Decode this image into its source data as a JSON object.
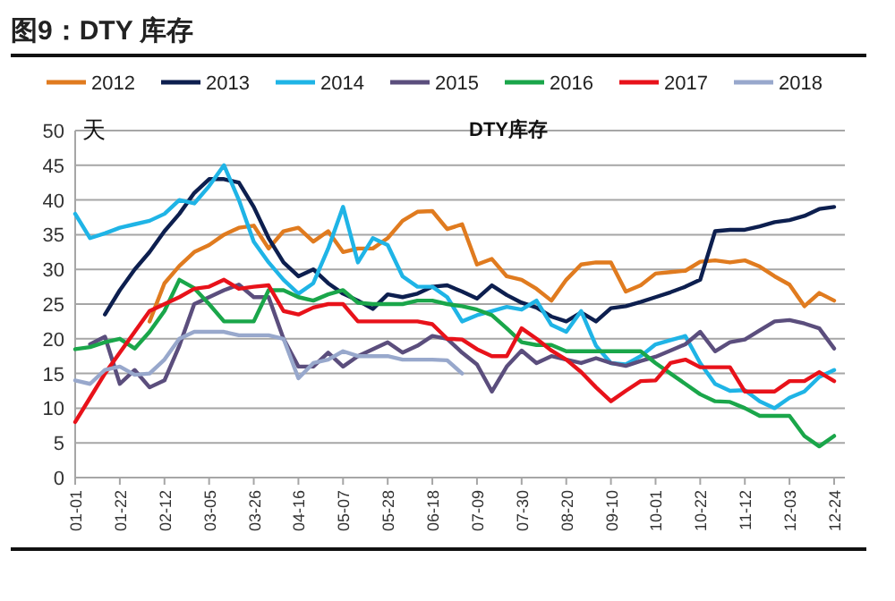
{
  "chart_data": {
    "type": "line",
    "title": "图9：DTY 库存",
    "subtitle": "DTY库存",
    "ylabel": "天",
    "categories": [
      "01-01",
      null,
      null,
      "01-22",
      null,
      null,
      "02-12",
      null,
      null,
      "03-05",
      null,
      null,
      "03-26",
      null,
      null,
      "04-16",
      null,
      null,
      "05-07",
      null,
      null,
      "05-28",
      null,
      null,
      "06-18",
      null,
      null,
      "07-09",
      null,
      null,
      "07-30",
      null,
      null,
      "08-20",
      null,
      null,
      "09-10",
      null,
      null,
      "10-01",
      null,
      null,
      "10-22",
      null,
      null,
      "11-12",
      null,
      null,
      "12-03",
      null,
      null,
      "12-24"
    ],
    "series": [
      {
        "name": "2012",
        "color": "#e07b1f",
        "values": [
          null,
          null,
          null,
          null,
          null,
          22.5,
          28,
          30.5,
          32.5,
          33.5,
          35,
          36,
          36.3,
          33,
          35.5,
          36,
          34,
          35.5,
          32.5,
          33,
          33,
          34.5,
          37,
          38.3,
          38.4,
          35.8,
          36.5,
          30.7,
          31.5,
          29,
          28.5,
          27.2,
          25.5,
          28.5,
          30.7,
          31,
          31,
          26.8,
          27.7,
          29.4,
          29.6,
          29.8,
          31.1,
          31.3,
          31,
          31.3,
          30.4,
          29,
          27.8,
          24.7,
          26.6,
          25.5
        ]
      },
      {
        "name": "2013",
        "color": "#0d1f4f",
        "values": [
          null,
          null,
          23.5,
          27,
          30,
          32.5,
          35.5,
          38,
          41,
          43,
          43,
          42.5,
          39,
          34.5,
          31,
          29,
          30,
          28,
          26.5,
          25.5,
          24.3,
          26.4,
          26,
          26.5,
          27.5,
          27.7,
          26.8,
          25.8,
          27.7,
          26.3,
          25.2,
          24.5,
          23.2,
          22.5,
          23.8,
          22.5,
          24.4,
          24.7,
          25.3,
          26,
          26.7,
          27.5,
          28.5,
          35.5,
          35.7,
          35.7,
          36.2,
          36.8,
          37.1,
          37.7,
          38.7,
          39
        ]
      },
      {
        "name": "2014",
        "color": "#1fb4e6",
        "values": [
          38,
          34.5,
          35.2,
          36,
          36.5,
          37,
          38,
          40,
          39.5,
          42,
          45,
          40,
          34,
          31,
          28.5,
          26.5,
          28,
          33,
          39,
          31,
          34.5,
          33.5,
          29,
          27.5,
          27.5,
          26,
          22.5,
          23.4,
          24,
          24.6,
          24.2,
          25.5,
          22,
          21,
          24,
          19,
          16.5,
          16.3,
          17.5,
          19.2,
          19.8,
          20.4,
          16.5,
          13.5,
          12.5,
          12.6,
          11,
          10,
          11.5,
          12.4,
          14.5,
          15.5
        ]
      },
      {
        "name": "2015",
        "color": "#5b4e7d",
        "values": [
          null,
          19.2,
          20.3,
          13.5,
          15.5,
          13,
          14,
          19,
          25,
          26,
          27,
          27.8,
          26,
          26,
          20,
          16,
          16,
          18,
          16,
          17.5,
          18.5,
          19.5,
          18,
          19,
          20.4,
          20,
          18,
          16.3,
          12.4,
          16,
          18.3,
          16.5,
          17.5,
          17,
          16.5,
          17.2,
          16.5,
          16.1,
          16.8,
          17.4,
          18.3,
          19.2,
          21,
          18.2,
          19.5,
          19.9,
          21.2,
          22.5,
          22.7,
          22.2,
          21.5,
          18.6
        ]
      },
      {
        "name": "2016",
        "color": "#1aa64a",
        "values": [
          18.5,
          18.8,
          19.5,
          20,
          18.6,
          21,
          24,
          28.5,
          27.3,
          25,
          22.5,
          22.5,
          22.5,
          27,
          27,
          26,
          25.5,
          26.4,
          27,
          25.2,
          25,
          25,
          25,
          25.5,
          25.5,
          25,
          24.7,
          24.2,
          23.4,
          21.5,
          19.5,
          19.1,
          19.1,
          18.2,
          18.2,
          18.2,
          18.2,
          18.2,
          18.2,
          16.5,
          15,
          13.5,
          12,
          11,
          10.9,
          10,
          8.9,
          8.9,
          8.9,
          6,
          4.5,
          6
        ]
      },
      {
        "name": "2017",
        "color": "#e8121a",
        "values": [
          8,
          11.5,
          15,
          18,
          21,
          24,
          25,
          26,
          27.2,
          27.5,
          28.5,
          27.2,
          27.5,
          27.7,
          24,
          23.5,
          24.5,
          25,
          25,
          22.5,
          22.5,
          22.5,
          22.5,
          22.5,
          22.1,
          20,
          19.9,
          18.5,
          17.5,
          17.5,
          21.5,
          20,
          18.3,
          17,
          15.2,
          13,
          11,
          12.5,
          13.9,
          14,
          16.5,
          17,
          15.9,
          15.9,
          15.9,
          12.4,
          12.4,
          12.4,
          13.9,
          13.9,
          15.2,
          13.9
        ]
      },
      {
        "name": "2018",
        "color": "#98a8cc",
        "values": [
          14,
          13.5,
          15.5,
          16,
          14.8,
          15,
          17,
          20,
          21,
          21,
          21,
          20.5,
          20.5,
          20.5,
          20,
          14.3,
          16.5,
          17,
          18.2,
          17.5,
          17.5,
          17.5,
          17,
          17,
          17,
          16.9,
          15,
          null,
          null,
          null,
          null,
          null,
          null,
          null,
          null,
          null,
          null,
          null,
          null,
          null,
          null,
          null,
          null,
          null,
          null,
          null,
          null,
          null,
          null,
          null,
          null,
          null
        ]
      }
    ],
    "ylim": [
      0,
      50
    ],
    "yticks": [
      0,
      5,
      10,
      15,
      20,
      25,
      30,
      35,
      40,
      45,
      50
    ],
    "grid": "y",
    "legend": "top",
    "marker": "none",
    "line_style": "solid"
  }
}
